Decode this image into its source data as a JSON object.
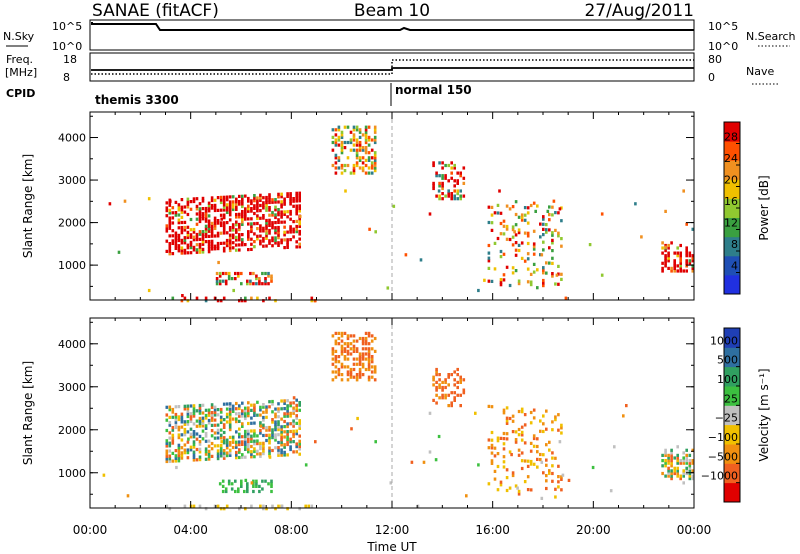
{
  "header": {
    "station": "SANAE (fitACF)",
    "beam": "Beam 10",
    "date": "27/Aug/2011"
  },
  "panels": {
    "nsky": {
      "label": "N.Sky",
      "ticks": [
        "10^5",
        "10^0"
      ],
      "right_label": "N.Search",
      "right_ticks": [
        "10^5",
        "10^0"
      ]
    },
    "freq": {
      "label_top": "Freq.",
      "label_unit": "[MHz]",
      "ticks": [
        "18",
        "8"
      ],
      "right_label": "Nave",
      "right_ticks": [
        "80",
        "0"
      ]
    },
    "cpid": {
      "label": "CPID",
      "segments": [
        "themis 3300",
        "normal 150"
      ]
    }
  },
  "colors": {
    "power": [
      "#2030e0",
      "#1f4fb5",
      "#2e7e8a",
      "#3aa040",
      "#90c830",
      "#f0c000",
      "#f09020",
      "#ff5000",
      "#e00000"
    ],
    "velocity": [
      "#e00000",
      "#f06020",
      "#f09010",
      "#f0c000",
      "#c0c0c0",
      "#3cc040",
      "#30a060",
      "#2e6fa0",
      "#1f3fb5"
    ]
  },
  "chart_data": [
    {
      "type": "heatmap",
      "name": "power",
      "xlabel": "Time UT",
      "ylabel": "Slant Range [km]",
      "xlim": [
        0,
        24
      ],
      "ylim": [
        180,
        4600
      ],
      "xticks": [
        "00:00",
        "04:00",
        "08:00",
        "12:00",
        "16:00",
        "20:00",
        "00:00"
      ],
      "yticks": [
        1000,
        2000,
        3000,
        4000
      ],
      "colorbar": {
        "label": "Power [dB]",
        "ticks": [
          4,
          8,
          12,
          16,
          20,
          24,
          28
        ],
        "range": [
          0,
          32
        ]
      },
      "clusters": [
        {
          "t0": 3.0,
          "t1": 8.3,
          "r0": 1300,
          "r1": 2600,
          "slope": 0.08,
          "density": 0.55,
          "vmin": 3,
          "vmax": 24
        },
        {
          "t0": 5.0,
          "t1": 7.2,
          "r0": 600,
          "r1": 900,
          "slope": 0,
          "density": 0.45,
          "vmin": 2,
          "vmax": 12
        },
        {
          "t0": 9.6,
          "t1": 11.3,
          "r0": 3200,
          "r1": 4300,
          "slope": 0,
          "density": 0.45,
          "vmin": 2,
          "vmax": 8
        },
        {
          "t0": 13.6,
          "t1": 14.8,
          "r0": 2600,
          "r1": 3500,
          "slope": 0,
          "density": 0.4,
          "vmin": 2,
          "vmax": 14
        },
        {
          "t0": 15.8,
          "t1": 18.8,
          "r0": 600,
          "r1": 2600,
          "slope": -0.12,
          "density": 0.18,
          "vmin": 2,
          "vmax": 8
        },
        {
          "t0": 22.7,
          "t1": 24.0,
          "r0": 900,
          "r1": 1600,
          "slope": 0,
          "density": 0.5,
          "vmin": 3,
          "vmax": 20
        },
        {
          "t0": 3.0,
          "t1": 9.0,
          "r0": 200,
          "r1": 320,
          "slope": 0,
          "density": 0.25,
          "vmin": 2,
          "vmax": 14
        },
        {
          "t0": 0.5,
          "t1": 24.0,
          "r0": 200,
          "r1": 2800,
          "slope": 0,
          "density": 0.004,
          "vmin": 2,
          "vmax": 8
        }
      ]
    },
    {
      "type": "heatmap",
      "name": "velocity",
      "xlabel": "Time UT",
      "ylabel": "Slant Range [km]",
      "xlim": [
        0,
        24
      ],
      "ylim": [
        180,
        4600
      ],
      "xticks": [
        "00:00",
        "04:00",
        "08:00",
        "12:00",
        "16:00",
        "20:00",
        "00:00"
      ],
      "yticks": [
        1000,
        2000,
        3000,
        4000
      ],
      "colorbar": {
        "label": "Velocity [m s⁻¹]",
        "ticks": [
          "1000",
          "500",
          "100",
          "25",
          "−25",
          "−100",
          "−500",
          "−1000"
        ]
      },
      "clusters": [
        {
          "t0": 3.0,
          "t1": 8.3,
          "r0": 1300,
          "r1": 2600,
          "slope": 0.08,
          "density": 0.55,
          "vmin": 1,
          "vmax": 7
        },
        {
          "t0": 5.0,
          "t1": 7.2,
          "r0": 600,
          "r1": 900,
          "slope": 0,
          "density": 0.45,
          "vmin": 5,
          "vmax": 6
        },
        {
          "t0": 9.6,
          "t1": 11.3,
          "r0": 3200,
          "r1": 4300,
          "slope": 0,
          "density": 0.45,
          "vmin": 1,
          "vmax": 2
        },
        {
          "t0": 13.6,
          "t1": 14.8,
          "r0": 2600,
          "r1": 3500,
          "slope": 0,
          "density": 0.4,
          "vmin": 1,
          "vmax": 2
        },
        {
          "t0": 15.8,
          "t1": 18.8,
          "r0": 600,
          "r1": 2600,
          "slope": -0.12,
          "density": 0.18,
          "vmin": 1,
          "vmax": 3
        },
        {
          "t0": 22.7,
          "t1": 24.0,
          "r0": 900,
          "r1": 1600,
          "slope": 0,
          "density": 0.5,
          "vmin": 1,
          "vmax": 6
        },
        {
          "t0": 3.0,
          "t1": 9.0,
          "r0": 200,
          "r1": 320,
          "slope": 0,
          "density": 0.25,
          "vmin": 3,
          "vmax": 4
        },
        {
          "t0": 0.5,
          "t1": 24.0,
          "r0": 200,
          "r1": 2800,
          "slope": 0,
          "density": 0.004,
          "vmin": 1,
          "vmax": 5
        }
      ]
    }
  ]
}
